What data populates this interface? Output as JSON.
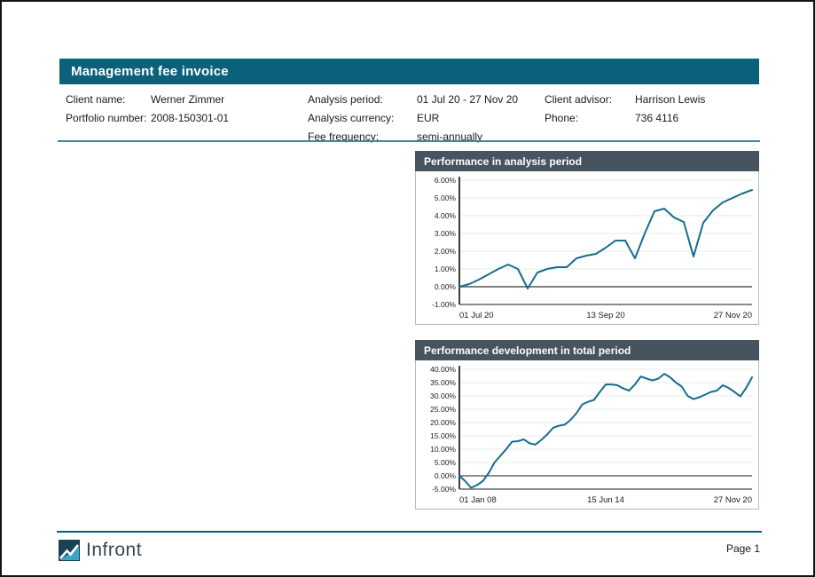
{
  "header": {
    "title": "Management fee invoice"
  },
  "info": {
    "columns": [
      {
        "rows": [
          {
            "label": "Client name:",
            "value": "Werner Zimmer"
          },
          {
            "label": "Portfolio number:",
            "value": "2008-150301-01"
          }
        ]
      },
      {
        "rows": [
          {
            "label": "Analysis period:",
            "value": "01 Jul 20 - 27 Nov 20"
          },
          {
            "label": "Analysis currency:",
            "value": "EUR"
          },
          {
            "label": "Fee frequency:",
            "value": "semi-annually"
          }
        ]
      },
      {
        "rows": [
          {
            "label": "Client advisor:",
            "value": "Harrison Lewis"
          },
          {
            "label": "Phone:",
            "value": "736 4116"
          }
        ]
      }
    ]
  },
  "colors": {
    "accent_teal": "#0b607a",
    "panel_header": "#47535e",
    "separator": "#3c87a5",
    "grid": "#e6ede6",
    "line": "#166d8d"
  },
  "chart_data": [
    {
      "type": "line",
      "title": "Performance in analysis period",
      "xlabel": "",
      "ylabel": "",
      "ylim": [
        -1,
        6
      ],
      "ytick_step": 1,
      "grid": true,
      "legend": "none",
      "xticklabels": [
        "01 Jul 20",
        "13 Sep 20",
        "27 Nov 20"
      ],
      "color": "#166d8d",
      "zero_line_color": "#7f7f7f",
      "zero_line_width": 2,
      "values": [
        0.0,
        0.15,
        0.4,
        0.7,
        1.0,
        1.25,
        1.0,
        -0.1,
        0.8,
        1.0,
        1.1,
        1.1,
        1.6,
        1.75,
        1.85,
        2.2,
        2.6,
        2.6,
        1.6,
        3.0,
        4.25,
        4.4,
        3.9,
        3.65,
        1.7,
        3.6,
        4.3,
        4.75,
        5.0,
        5.25,
        5.45
      ]
    },
    {
      "type": "line",
      "title": "Performance development in total period",
      "xlabel": "",
      "ylabel": "",
      "ylim": [
        -5,
        40
      ],
      "ytick_step": 5,
      "grid": true,
      "legend": "none",
      "xticklabels": [
        "01 Jan 08",
        "15 Jun 14",
        "27 Nov 20"
      ],
      "color": "#166d8d",
      "zero_line_color": "#1a1a1a",
      "zero_line_width": 1,
      "values": [
        0,
        -2,
        -4.5,
        -3.5,
        -2,
        1,
        5,
        7.5,
        10,
        12.8,
        13,
        13.7,
        12.2,
        11.7,
        13.5,
        15.5,
        18,
        18.8,
        19.2,
        21,
        23.5,
        26.8,
        27.8,
        28.5,
        31.5,
        34.3,
        34.3,
        34,
        32.8,
        32,
        34.3,
        37.3,
        36.5,
        35.8,
        36.5,
        38.3,
        37,
        35,
        33.5,
        30,
        28.8,
        29.5,
        30.5,
        31.5,
        32,
        34,
        33,
        31.5,
        29.8,
        33,
        37
      ]
    }
  ],
  "footer": {
    "logo_text": "Infront",
    "page_label": "Page 1"
  }
}
